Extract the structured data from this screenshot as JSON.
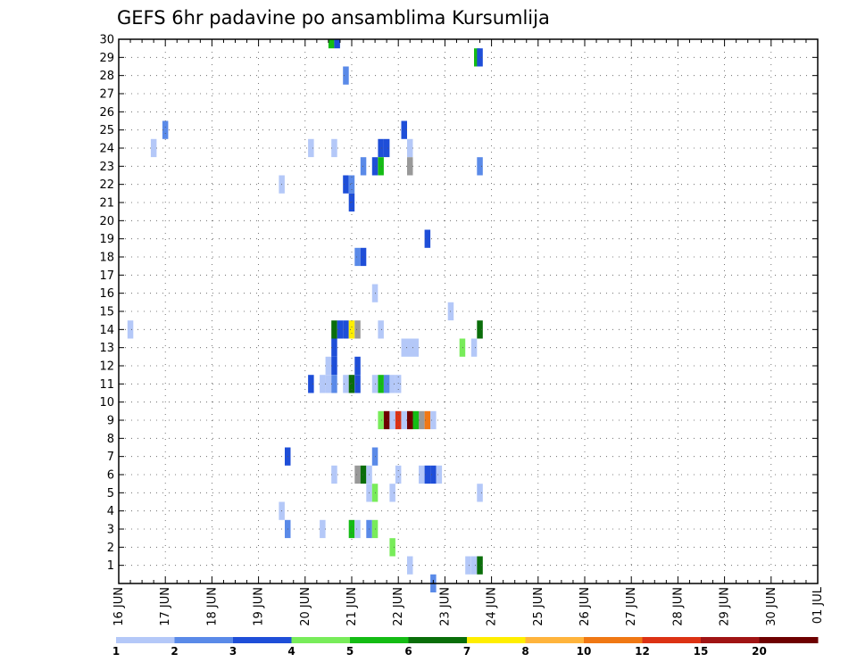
{
  "chart_data": {
    "type": "heatmap",
    "title": "GEFS 6hr padavine po ansamblima Kursumlija",
    "xlabel": "",
    "ylabel": "",
    "x_tick_labels": [
      "16 JUN",
      "17 JUN",
      "18 JUN",
      "19 JUN",
      "20 JUN",
      "21 JUN",
      "22 JUN",
      "23 JUN",
      "24 JUN",
      "25 JUN",
      "26 JUN",
      "27 JUN",
      "28 JUN",
      "29 JUN",
      "30 JUN",
      "01 JUL"
    ],
    "y_tick_labels": [
      "1",
      "2",
      "3",
      "4",
      "5",
      "6",
      "7",
      "8",
      "9",
      "10",
      "11",
      "12",
      "13",
      "14",
      "15",
      "16",
      "17",
      "18",
      "19",
      "20",
      "21",
      "22",
      "23",
      "24",
      "25",
      "26",
      "27",
      "28",
      "29",
      "30"
    ],
    "x_range": [
      0,
      60
    ],
    "y_range": [
      0,
      30
    ],
    "grid": true,
    "legend": {
      "placement": "bottom",
      "labels": [
        "1",
        "2",
        "3",
        "4",
        "5",
        "6",
        "7",
        "8",
        "10",
        "12",
        "15",
        "20"
      ],
      "colors": [
        "#b4c8f8",
        "#5a8ae8",
        "#1e4ed8",
        "#78ec5a",
        "#14bc14",
        "#0a6e0a",
        "#ffee00",
        "#ffb43c",
        "#f07814",
        "#dc3214",
        "#a01414",
        "#6e0000"
      ]
    },
    "cells": [
      [
        0.75,
        1.25,
        14,
        1
      ],
      [
        2.75,
        3.25,
        24,
        1
      ],
      [
        3.75,
        4.25,
        25,
        2
      ],
      [
        13.75,
        14.25,
        4,
        1
      ],
      [
        13.75,
        14.25,
        22,
        1
      ],
      [
        14.25,
        14.75,
        3,
        2
      ],
      [
        14.25,
        14.75,
        7,
        3
      ],
      [
        16.25,
        16.75,
        24,
        1
      ],
      [
        16.25,
        16.75,
        11,
        3
      ],
      [
        17.25,
        17.75,
        3,
        1
      ],
      [
        17.25,
        17.75,
        11,
        1
      ],
      [
        17.75,
        18.25,
        11,
        1
      ],
      [
        17.75,
        18.25,
        12,
        1
      ],
      [
        18.0,
        18.5,
        30,
        5
      ],
      [
        18.25,
        18.75,
        24,
        1
      ],
      [
        18.25,
        18.75,
        11,
        2
      ],
      [
        18.25,
        18.75,
        12,
        3
      ],
      [
        18.25,
        18.75,
        13,
        3
      ],
      [
        18.25,
        18.75,
        14,
        6
      ],
      [
        18.25,
        18.75,
        6,
        1
      ],
      [
        18.5,
        19.0,
        30,
        3
      ],
      [
        18.75,
        19.25,
        14,
        3
      ],
      [
        19.25,
        19.75,
        28,
        2
      ],
      [
        19.25,
        19.75,
        22,
        3
      ],
      [
        19.25,
        19.75,
        14,
        3
      ],
      [
        19.25,
        19.75,
        11,
        1
      ],
      [
        19.75,
        20.25,
        22,
        2
      ],
      [
        19.75,
        20.25,
        21,
        3
      ],
      [
        19.75,
        20.25,
        14,
        7
      ],
      [
        19.75,
        20.25,
        11,
        6
      ],
      [
        19.75,
        20.25,
        3,
        5
      ],
      [
        20.25,
        20.75,
        18,
        2
      ],
      [
        20.25,
        20.75,
        14,
        9
      ],
      [
        20.25,
        20.75,
        12,
        3
      ],
      [
        20.25,
        20.75,
        11,
        3
      ],
      [
        20.25,
        20.75,
        6,
        13
      ],
      [
        20.25,
        20.75,
        3,
        1
      ],
      [
        20.75,
        21.25,
        23,
        2
      ],
      [
        20.75,
        21.25,
        18,
        3
      ],
      [
        20.75,
        21.25,
        6,
        6
      ],
      [
        21.25,
        21.75,
        6,
        1
      ],
      [
        21.25,
        21.75,
        5,
        1
      ],
      [
        21.25,
        21.75,
        3,
        2
      ],
      [
        21.75,
        22.25,
        23,
        3
      ],
      [
        21.75,
        22.25,
        16,
        1
      ],
      [
        21.75,
        22.25,
        11,
        1
      ],
      [
        21.75,
        22.25,
        7,
        2
      ],
      [
        21.75,
        22.25,
        5,
        4
      ],
      [
        21.75,
        22.25,
        3,
        4
      ],
      [
        22.25,
        22.75,
        24,
        3
      ],
      [
        22.25,
        22.75,
        23,
        5
      ],
      [
        22.25,
        22.75,
        14,
        1
      ],
      [
        22.25,
        22.75,
        11,
        5
      ],
      [
        22.25,
        22.75,
        9,
        4
      ],
      [
        22.75,
        23.25,
        24,
        3
      ],
      [
        22.75,
        23.25,
        11,
        2
      ],
      [
        22.75,
        23.25,
        9,
        20
      ],
      [
        23.25,
        23.75,
        11,
        1
      ],
      [
        23.25,
        23.75,
        9,
        1
      ],
      [
        23.25,
        23.75,
        5,
        1
      ],
      [
        23.25,
        23.75,
        2,
        4
      ],
      [
        23.75,
        24.25,
        11,
        1
      ],
      [
        23.75,
        24.25,
        9,
        12
      ],
      [
        23.75,
        24.25,
        6,
        1
      ],
      [
        24.25,
        24.75,
        25,
        3
      ],
      [
        24.25,
        24.75,
        13,
        1
      ],
      [
        24.25,
        24.75,
        9,
        1
      ],
      [
        24.75,
        25.25,
        24,
        1
      ],
      [
        24.75,
        25.25,
        23,
        13
      ],
      [
        24.75,
        25.25,
        13,
        1
      ],
      [
        24.75,
        25.25,
        9,
        20
      ],
      [
        24.75,
        25.25,
        1,
        1
      ],
      [
        25.25,
        25.75,
        13,
        1
      ],
      [
        25.25,
        25.75,
        9,
        5
      ],
      [
        25.75,
        26.25,
        9,
        13
      ],
      [
        25.75,
        26.25,
        6,
        1
      ],
      [
        26.25,
        26.75,
        19,
        3
      ],
      [
        26.25,
        26.75,
        9,
        10
      ],
      [
        26.25,
        26.75,
        6,
        3
      ],
      [
        26.75,
        27.25,
        9,
        1
      ],
      [
        26.75,
        27.25,
        6,
        3
      ],
      [
        26.75,
        27.25,
        0,
        2
      ],
      [
        27.25,
        27.75,
        6,
        1
      ],
      [
        28.25,
        28.75,
        15,
        1
      ],
      [
        29.25,
        29.75,
        13,
        4
      ],
      [
        29.75,
        30.25,
        1,
        1
      ],
      [
        30.25,
        30.75,
        13,
        1
      ],
      [
        30.25,
        30.75,
        1,
        1
      ],
      [
        30.5,
        31.0,
        29,
        5
      ],
      [
        30.75,
        31.25,
        29,
        3
      ],
      [
        30.75,
        31.25,
        23,
        2
      ],
      [
        30.75,
        31.25,
        14,
        6
      ],
      [
        30.75,
        31.25,
        5,
        1
      ],
      [
        30.75,
        31.25,
        1,
        6
      ]
    ]
  }
}
